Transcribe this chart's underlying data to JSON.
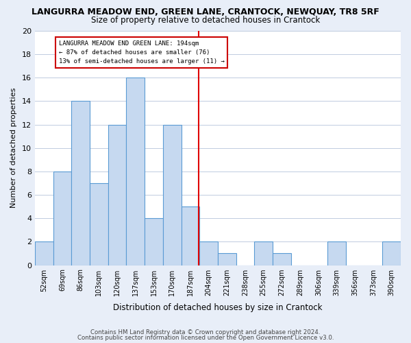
{
  "title": "LANGURRA MEADOW END, GREEN LANE, CRANTOCK, NEWQUAY, TR8 5RF",
  "subtitle": "Size of property relative to detached houses in Crantock",
  "xlabel": "Distribution of detached houses by size in Crantock",
  "ylabel": "Number of detached properties",
  "bin_labels": [
    "52sqm",
    "69sqm",
    "86sqm",
    "103sqm",
    "120sqm",
    "137sqm",
    "153sqm",
    "170sqm",
    "187sqm",
    "204sqm",
    "221sqm",
    "238sqm",
    "255sqm",
    "272sqm",
    "289sqm",
    "306sqm",
    "339sqm",
    "356sqm",
    "373sqm",
    "390sqm"
  ],
  "bar_values": [
    2,
    8,
    14,
    7,
    12,
    16,
    4,
    12,
    5,
    2,
    1,
    0,
    2,
    1,
    0,
    0,
    2,
    0,
    0,
    2
  ],
  "bar_color": "#c6d9f0",
  "bar_edge_color": "#5a9bd4",
  "ylim": [
    0,
    20
  ],
  "yticks": [
    0,
    2,
    4,
    6,
    8,
    10,
    12,
    14,
    16,
    18,
    20
  ],
  "vline_x": 8.47,
  "vline_color": "#e00000",
  "annotation_title": "LANGURRA MEADOW END GREEN LANE: 194sqm",
  "annotation_line1": "← 87% of detached houses are smaller (76)",
  "annotation_line2": "13% of semi-detached houses are larger (11) →",
  "footer_line1": "Contains HM Land Registry data © Crown copyright and database right 2024.",
  "footer_line2": "Contains public sector information licensed under the Open Government Licence v3.0.",
  "bg_color": "#e8eef8",
  "plot_bg_color": "#ffffff"
}
